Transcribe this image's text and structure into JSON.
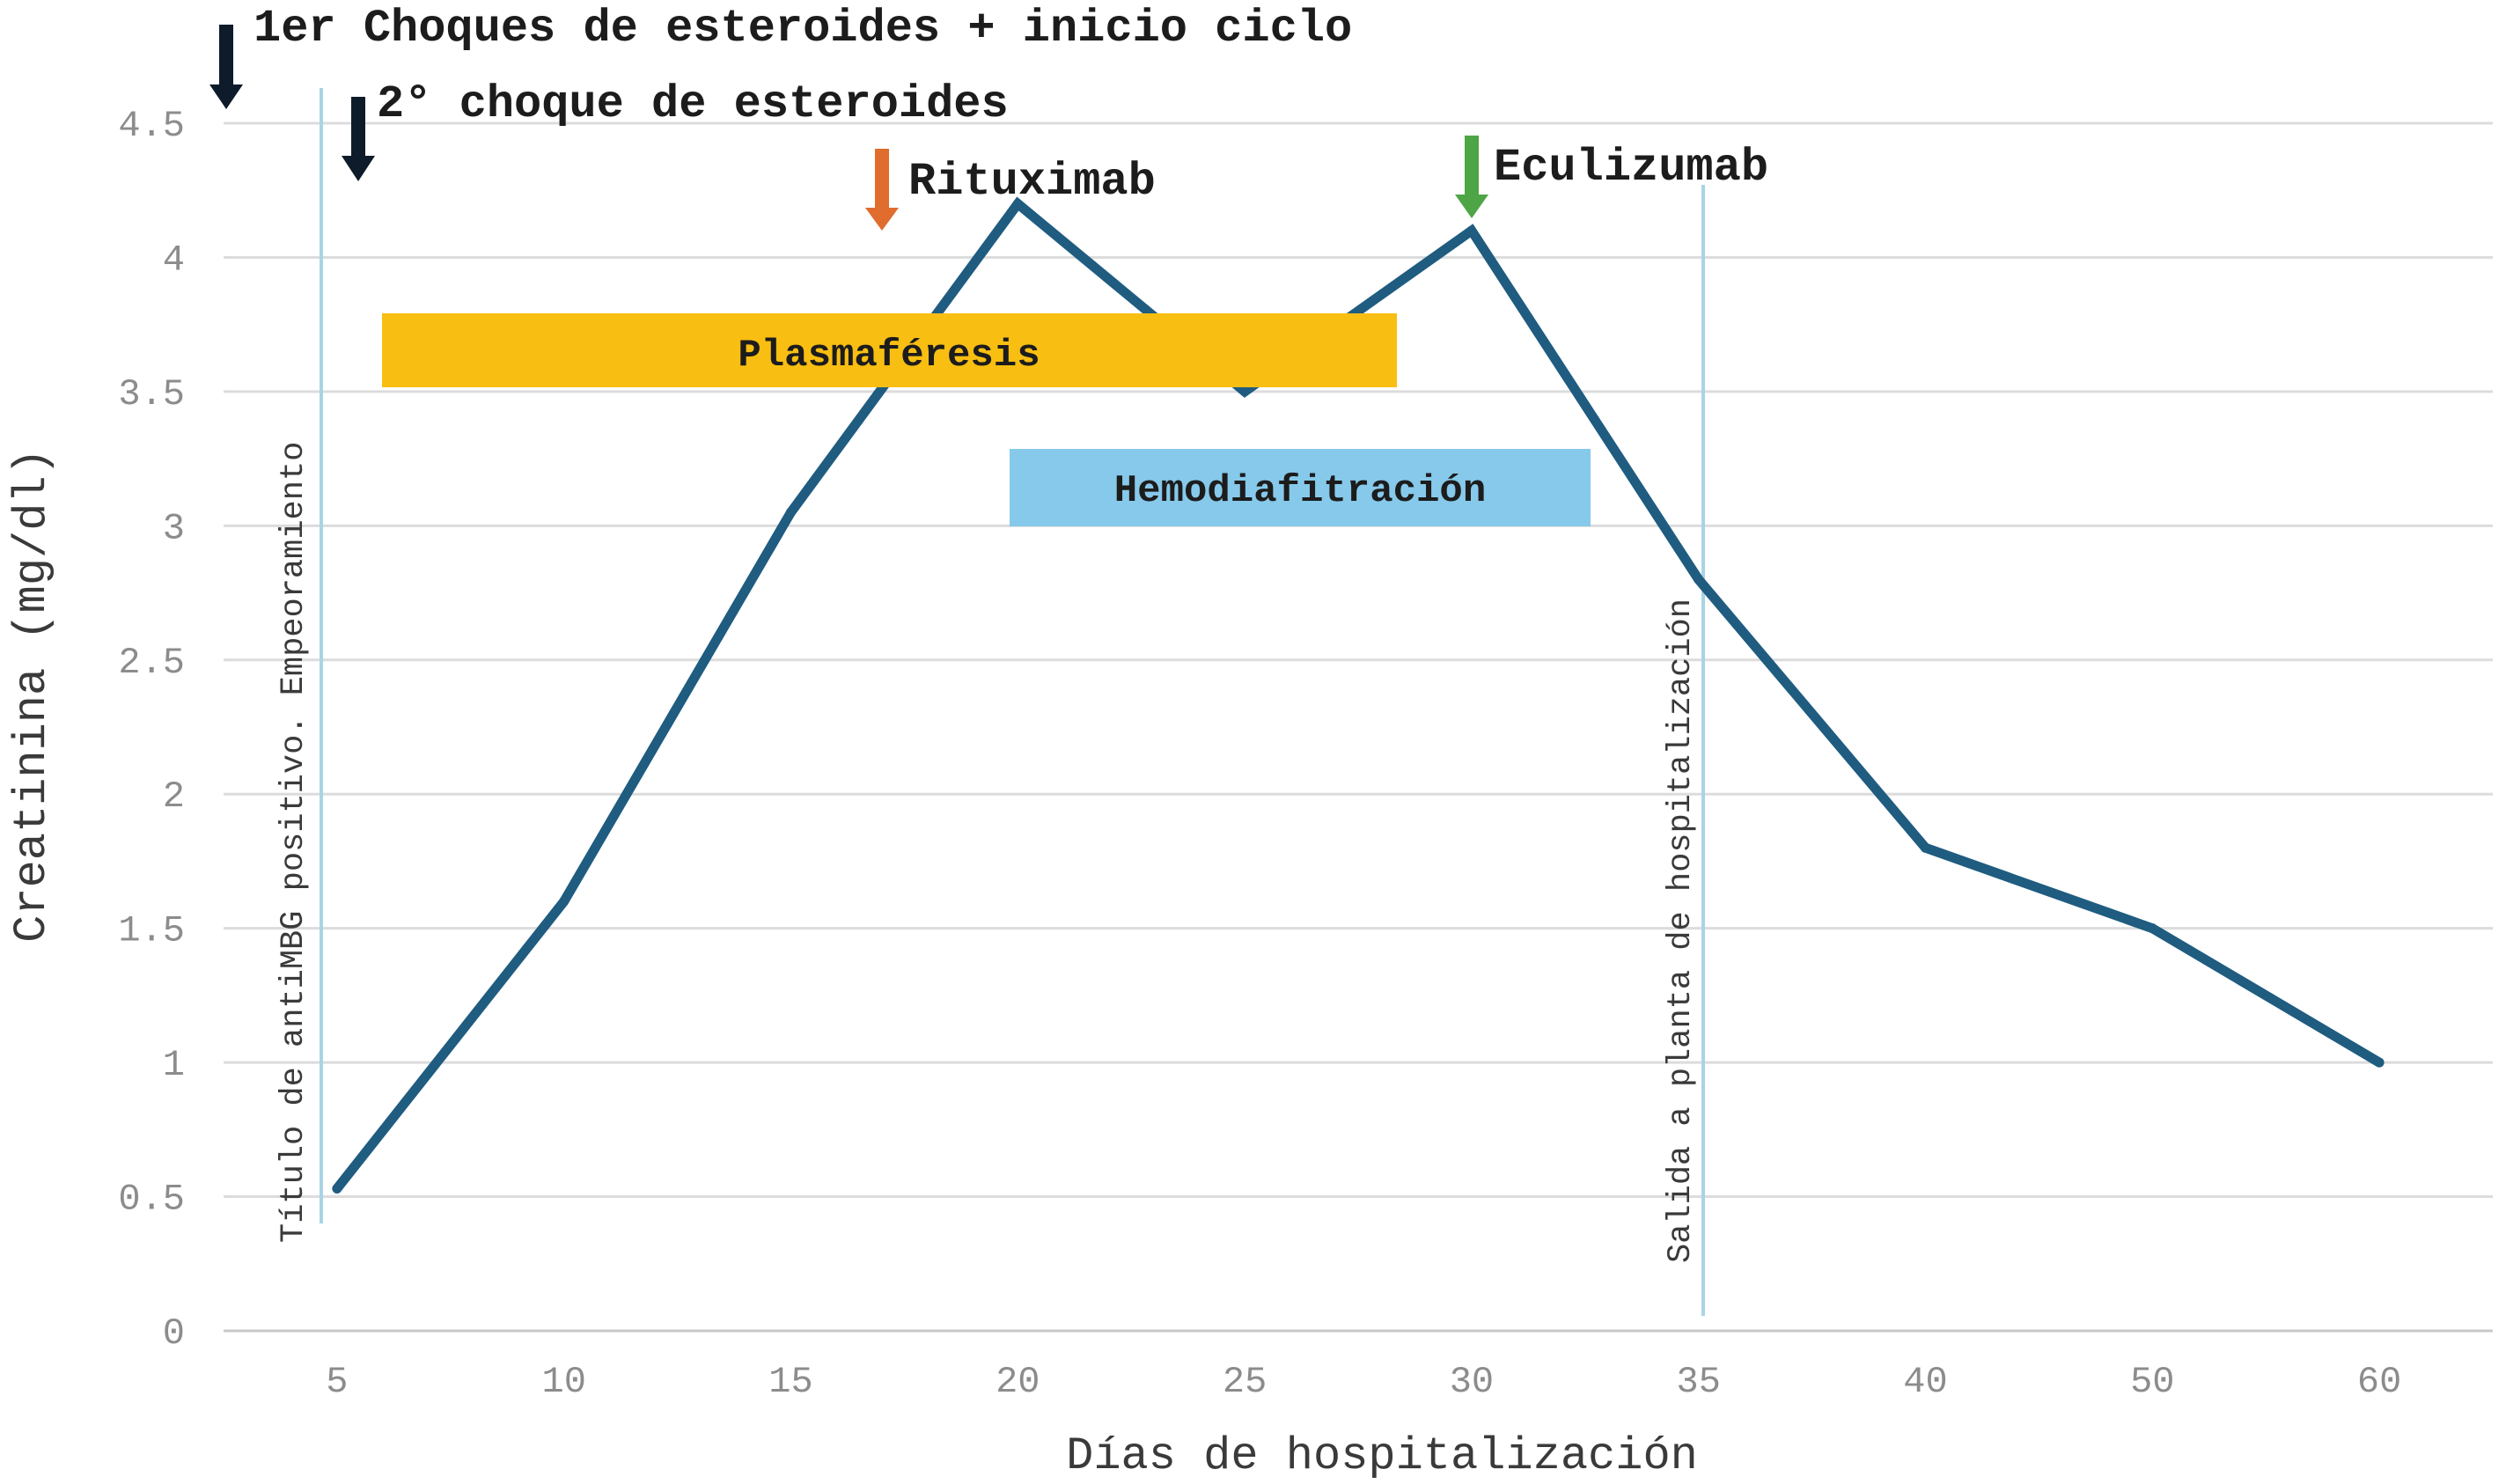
{
  "chart_data": {
    "type": "line",
    "xlabel": "Días de hospitalización",
    "ylabel": "Creatinina (mg/dl)",
    "categories": [
      "5",
      "10",
      "15",
      "20",
      "25",
      "30",
      "35",
      "40",
      "50",
      "60"
    ],
    "yticks": [
      "0",
      "0.5",
      "1",
      "1.5",
      "2",
      "2.5",
      "3",
      "3.5",
      "4",
      "4.5"
    ],
    "ylim": [
      0,
      4.5
    ],
    "grid": "horizontal",
    "series": [
      {
        "values": [
          0.53,
          1.6,
          3.05,
          4.2,
          3.5,
          4.1,
          2.8,
          1.8,
          1.5,
          1.0
        ],
        "color": "#1f5c80"
      }
    ],
    "annotations": {
      "steroids_1": {
        "text": "1er Choques de esteroides + inicio ciclo",
        "arrow_color": "#0d1b2a"
      },
      "steroids_2": {
        "text": "2° choque de esteroides",
        "arrow_color": "#0d1b2a"
      },
      "rituximab": {
        "text": "Rituximab",
        "arrow_color": "#e06c2e"
      },
      "eculizumab": {
        "text": "Eculizumab",
        "arrow_color": "#4ea546"
      },
      "marker_left": {
        "text": "Título de antiMBG positivo. Empeoramiento",
        "line_color": "#a8d4e6"
      },
      "marker_right": {
        "text": "Salida a planta de hospitalización",
        "line_color": "#a8d4e6"
      },
      "band_plasma": {
        "text": "Plasmaféresis",
        "color": "#f9be12"
      },
      "band_hemo": {
        "text": "Hemodiafitración",
        "color": "#86c9ea"
      }
    }
  }
}
